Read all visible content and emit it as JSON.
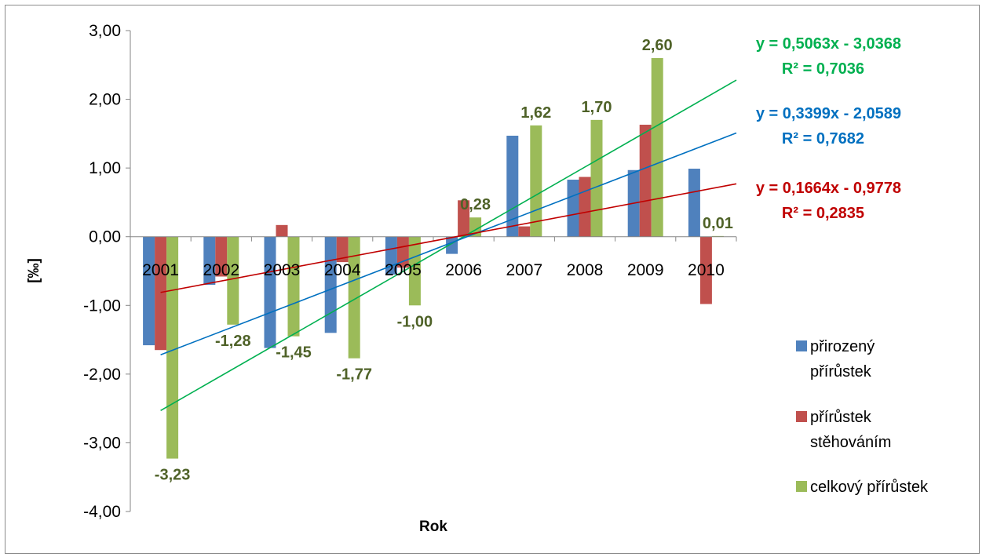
{
  "chart_data": {
    "type": "bar",
    "title": "",
    "xlabel": "Rok",
    "ylabel": "[‰]",
    "ylim": [
      -4,
      3
    ],
    "yticks": [
      "3,00",
      "2,00",
      "1,00",
      "0,00",
      "-1,00",
      "-2,00",
      "-3,00",
      "-4,00"
    ],
    "ytick_values": [
      3,
      2,
      1,
      0,
      -1,
      -2,
      -3,
      -4
    ],
    "categories": [
      "2001",
      "2002",
      "2003",
      "2004",
      "2005",
      "2006",
      "2007",
      "2008",
      "2009",
      "2010"
    ],
    "grid": false,
    "legend_position": "right",
    "series": [
      {
        "name": "přirozený přírůstek",
        "legend_lines": [
          "přirozený",
          "přírůstek"
        ],
        "color": "#4f81bd",
        "values": [
          -1.58,
          -0.7,
          -1.62,
          -1.4,
          -0.55,
          -0.25,
          1.47,
          0.83,
          0.97,
          0.99
        ]
      },
      {
        "name": "přírůstek stěhováním",
        "legend_lines": [
          "přírůstek",
          "stěhováním"
        ],
        "color": "#c0504d",
        "values": [
          -1.65,
          -0.58,
          0.17,
          -0.37,
          -0.45,
          0.53,
          0.15,
          0.87,
          1.63,
          -0.98
        ]
      },
      {
        "name": "celkový přírůstek",
        "legend_lines": [
          "celkový přírůstek"
        ],
        "color": "#9bbb59",
        "values": [
          -3.23,
          -1.28,
          -1.45,
          -1.77,
          -1.0,
          0.28,
          1.62,
          1.7,
          2.6,
          0.01
        ],
        "data_labels": [
          "-3,23",
          "-1,28",
          "-1,45",
          "-1,77",
          "-1,00",
          "0,28",
          "1,62",
          "1,70",
          "2,60",
          "0,01"
        ],
        "data_label_color": "#4f6228"
      }
    ],
    "trendlines": [
      {
        "series": "celkový přírůstek",
        "color": "#00b050",
        "slope": 0.5063,
        "intercept": -3.0368,
        "equation": "y = 0,5063x - 3,0368",
        "r2": "R² = 0,7036"
      },
      {
        "series": "přirozený přírůstek",
        "color": "#0070c0",
        "slope": 0.3399,
        "intercept": -2.0589,
        "equation": "y = 0,3399x - 2,0589",
        "r2": "R² = 0,7682"
      },
      {
        "series": "přírůstek stěhováním",
        "color": "#c00000",
        "slope": 0.1664,
        "intercept": -0.9778,
        "equation": "y = 0,1664x - 0,9778",
        "r2": "R² = 0,2835"
      }
    ]
  }
}
